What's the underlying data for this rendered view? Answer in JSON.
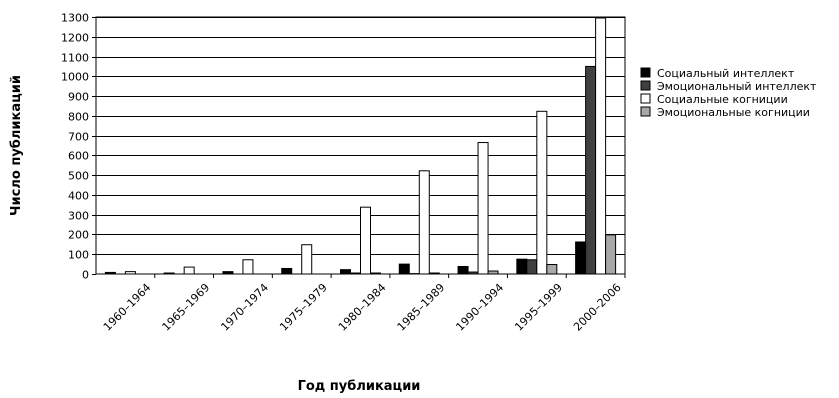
{
  "chart_data": {
    "type": "bar",
    "xlabel": "Год публикации",
    "ylabel": "Число публикаций",
    "ylim": [
      0,
      1300
    ],
    "yticks": [
      0,
      100,
      200,
      300,
      400,
      500,
      600,
      700,
      800,
      900,
      1000,
      1100,
      1200,
      1300
    ],
    "grid": true,
    "legend_position": "right",
    "categories": [
      "1960–1964",
      "1965–1969",
      "1970–1974",
      "1975–1979",
      "1980–1984",
      "1985–1989",
      "1990–1994",
      "1995–1999",
      "2000–2006"
    ],
    "series": [
      {
        "name": "Социальный интеллект",
        "color": "#000000",
        "values": [
          8,
          5,
          12,
          28,
          22,
          50,
          38,
          75,
          162
        ]
      },
      {
        "name": "Эмоциональный интеллект",
        "color": "#404040",
        "values": [
          0,
          0,
          0,
          0,
          5,
          2,
          10,
          72,
          1050
        ]
      },
      {
        "name": "Социальные когниции",
        "color": "#ffffff",
        "values": [
          12,
          35,
          72,
          148,
          338,
          522,
          665,
          823,
          1295
        ]
      },
      {
        "name": "Эмоциональные когниции",
        "color": "#a8a8a8",
        "values": [
          0,
          0,
          0,
          0,
          5,
          5,
          15,
          48,
          198
        ]
      }
    ]
  }
}
